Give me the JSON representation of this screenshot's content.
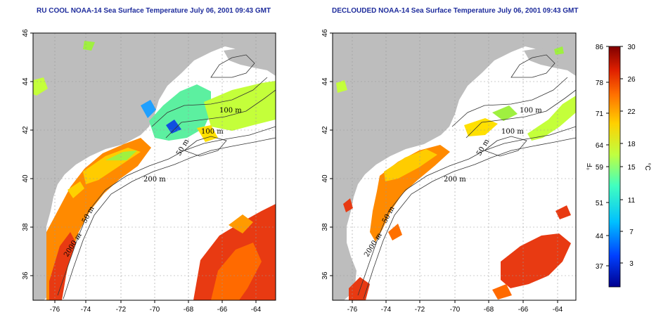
{
  "titles": {
    "left": "RU COOL NOAA-14 Sea Surface Temperature July 06, 2001 09:43 GMT",
    "right": "DECLOUDED NOAA-14 Sea Surface Temperature July 06, 2001 09:43 GMT"
  },
  "axes": {
    "lat_ticks": [
      "46",
      "44",
      "42",
      "40",
      "38",
      "36"
    ],
    "lon_ticks": [
      "-76",
      "-74",
      "-72",
      "-70",
      "-68",
      "-66",
      "-64"
    ]
  },
  "contour_labels": [
    "100 m",
    "100 m",
    "50 m",
    "200 m",
    "50 m",
    "2000 m"
  ],
  "colorbar": {
    "unit_f": "°F",
    "unit_c": "°C",
    "f_ticks": [
      "86",
      "78",
      "71",
      "64",
      "59",
      "51",
      "44",
      "37"
    ],
    "c_ticks": [
      "30",
      "26",
      "22",
      "18",
      "15",
      "11",
      "7",
      "3"
    ],
    "colors": [
      "#00008f",
      "#0040ff",
      "#00c0ff",
      "#40ffc0",
      "#c0ff40",
      "#ffd000",
      "#ff7000",
      "#e02000",
      "#800000"
    ]
  },
  "colors": {
    "land": "#bdbdbd",
    "title": "#1e2c9c"
  }
}
